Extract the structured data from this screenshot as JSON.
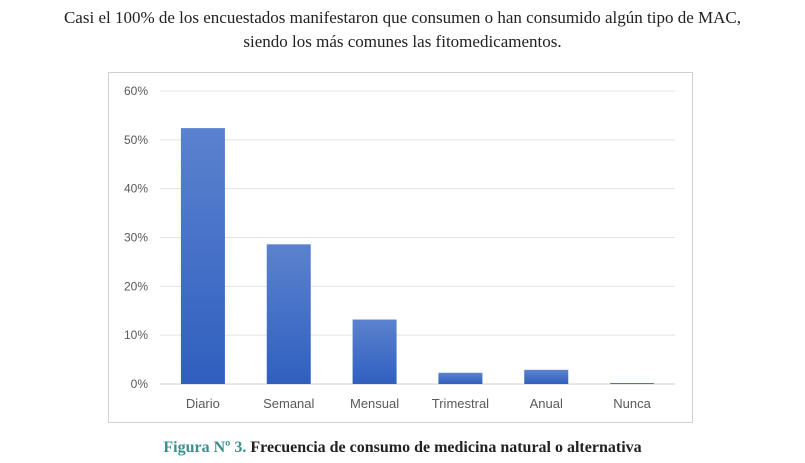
{
  "intro": {
    "line1": "Casi el 100% de los encuestados manifestaron que consumen o han consumido algún tipo de MAC,",
    "line2": "siendo los más comunes las fitomedicamentos."
  },
  "caption": {
    "label": "Figura Nº 3.",
    "text": " Frecuencia de consumo de medicina natural o alternativa"
  },
  "colors": {
    "bar_top": "#5b82cf",
    "bar_bottom": "#2f5fbf",
    "grid": "#e3e3e3",
    "caption_label": "#3a8f8f"
  },
  "chart_data": {
    "type": "bar",
    "title": "",
    "xlabel": "",
    "ylabel": "",
    "categories": [
      "Diario",
      "Semanal",
      "Mensual",
      "Trimestral",
      "Anual",
      "Nunca"
    ],
    "values": [
      52.4,
      28.6,
      13.2,
      2.3,
      2.9,
      0.2
    ],
    "ylim": [
      0,
      60
    ],
    "yticks": [
      0,
      10,
      20,
      30,
      40,
      50,
      60
    ],
    "ytick_labels": [
      "0%",
      "10%",
      "20%",
      "30%",
      "40%",
      "50%",
      "60%"
    ],
    "grid": true,
    "legend": "none"
  }
}
